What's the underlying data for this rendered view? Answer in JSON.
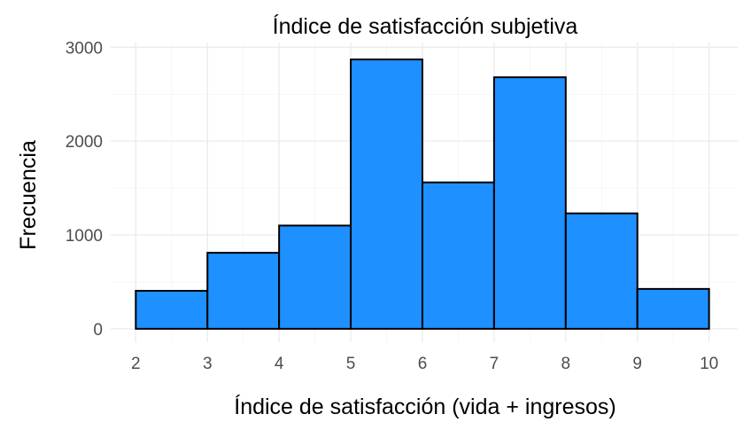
{
  "chart_data": {
    "type": "bar",
    "title": "Índice de satisfacción subjetiva",
    "xlabel": "Índice de satisfacción (vida + ingresos)",
    "ylabel": "Frecuencia",
    "bin_edges": [
      2,
      3,
      4,
      5,
      6,
      7,
      8,
      9,
      10
    ],
    "values": [
      405,
      810,
      1100,
      2870,
      1560,
      2680,
      1230,
      425
    ],
    "xlim": [
      1.65,
      10.4
    ],
    "ylim": [
      -143,
      3050
    ],
    "x_ticks": [
      "2",
      "3",
      "4",
      "5",
      "6",
      "7",
      "8",
      "9",
      "10"
    ],
    "y_ticks": [
      "0",
      "1000",
      "2000",
      "3000"
    ],
    "grid": true,
    "colors": {
      "bar_fill": "#1e90ff",
      "bar_outline": "#000000"
    }
  }
}
